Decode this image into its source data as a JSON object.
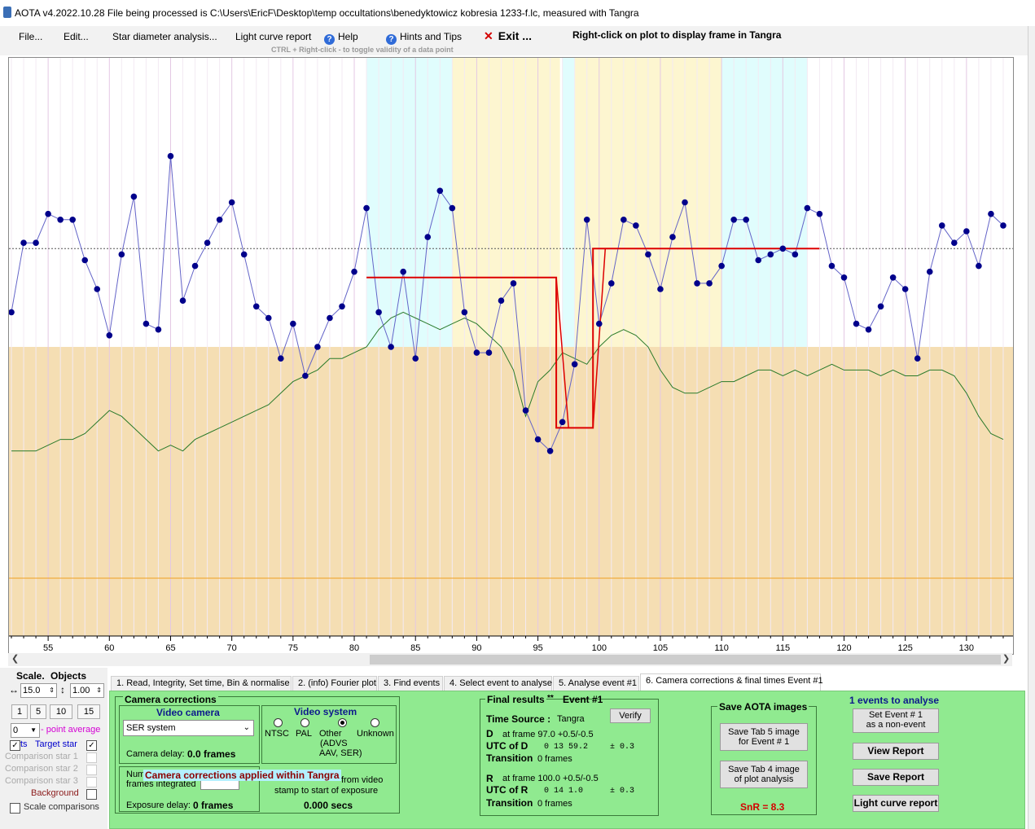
{
  "window": {
    "title": "AOTA v4.2022.10.28    File being processed is C:\\Users\\EricF\\Desktop\\temp occultations\\benedyktowicz kobresia 1233-f.lc, measured with Tangra"
  },
  "menu": {
    "file": "File...",
    "edit": "Edit...",
    "star_diameter": "Star diameter analysis...",
    "light_curve_report": "Light curve report",
    "help": "Help",
    "hints": "Hints and Tips",
    "exit": "Exit ...",
    "rightclick_hint": "Right-click on plot to display frame in Tangra",
    "ctrl_hint": "CTRL + Right-click  -  to toggle validity of a data point"
  },
  "colors": {
    "cyan_band": "#e0fdfd",
    "yellow_band": "#fdf6d0",
    "tan_region": "#f5deb3",
    "data_line": "#6464c8",
    "data_point": "#00008b",
    "model_line": "#dd0000",
    "comparison_line": "#2a7a2a",
    "orange_line": "#f0a020",
    "panel_green": "#90ea90"
  },
  "chart_data": {
    "type": "line",
    "x_ticks": [
      55,
      60,
      65,
      70,
      75,
      80,
      85,
      90,
      95,
      100,
      105,
      110,
      115,
      120,
      125,
      130
    ],
    "xlim": [
      51.8,
      133.8
    ],
    "ylim": [
      0,
      100
    ],
    "frame_range": [
      52,
      133
    ],
    "target_values": [
      56,
      68,
      68,
      73,
      72,
      72,
      65,
      60,
      52,
      66,
      76,
      54,
      53,
      83,
      58,
      64,
      68,
      72,
      75,
      66,
      57,
      55,
      48,
      54,
      45,
      50,
      55,
      57,
      63,
      74,
      56,
      50,
      63,
      48,
      69,
      77,
      74,
      56,
      49,
      49,
      58,
      61,
      39,
      34,
      32,
      37,
      47,
      72,
      54,
      61,
      72,
      71,
      66,
      60,
      69,
      75,
      61,
      61,
      64,
      72,
      72,
      65,
      66,
      67,
      66,
      74,
      73,
      64,
      62,
      54,
      53,
      57,
      62,
      60,
      48,
      63,
      71,
      68,
      70,
      64,
      73,
      71
    ],
    "comparison_values": [
      32,
      32,
      32,
      33,
      34,
      34,
      35,
      37,
      39,
      38,
      36,
      34,
      32,
      33,
      32,
      34,
      35,
      36,
      37,
      38,
      39,
      40,
      42,
      44,
      45,
      46,
      48,
      48,
      49,
      50,
      53,
      55,
      56,
      55,
      54,
      53,
      54,
      55,
      54,
      52,
      50,
      46,
      38,
      44,
      46,
      49,
      48,
      47,
      50,
      52,
      53,
      52,
      50,
      46,
      43,
      42,
      42,
      43,
      44,
      44,
      45,
      46,
      46,
      45,
      46,
      45,
      46,
      47,
      46,
      46,
      46,
      45,
      46,
      45,
      45,
      46,
      46,
      45,
      42,
      38,
      35,
      34
    ],
    "model_D": {
      "frame": 97.0,
      "upper": 62,
      "lower": 36,
      "x_start": 81
    },
    "model_R": {
      "frame": 100.0,
      "upper": 67,
      "lower": 36,
      "x_end": 118
    },
    "cyan_bands": [
      [
        81,
        88
      ],
      [
        97,
        98
      ],
      [
        110,
        117
      ]
    ],
    "yellow_bands": [
      [
        88,
        96.8
      ],
      [
        98,
        110
      ]
    ],
    "tan_region_top": 50,
    "baseline_dotted": 67,
    "orange_level": 10
  },
  "left_panel": {
    "scale_label": "Scale.",
    "objects_label": "Objects",
    "h_value": "15.0",
    "v_value": "1.00",
    "btn1": "1",
    "btn5": "5",
    "btn10": "10",
    "btn15": "15",
    "avg_value": "0",
    "point_average": "- point average",
    "pts": "ts",
    "target_star": "Target star",
    "comp1": "Comparison star 1",
    "comp2": "Comparison star 2",
    "comp3": "Comparison star 3",
    "background": "Background",
    "scale_comparisons": "Scale comparisons"
  },
  "tabs": [
    "1.  Read, Integrity, Set time, Bin & normalise",
    "2. (info)  Fourier plot",
    "3. Find events",
    "4. Select event to analyse",
    "5. Analyse event #1",
    "6. Camera corrections & final times Event #1"
  ],
  "camera": {
    "title": "Camera corrections",
    "video_camera": "Video camera",
    "camera_select": "SER system",
    "camera_delay_label": "Camera delay:",
    "camera_delay_value": "0.0 frames",
    "video_system": "Video system",
    "ntsc": "NTSC",
    "pal": "PAL",
    "other": "Other",
    "other_detail1": "(ADVS",
    "other_detail2": "AAV, SER)",
    "unknown": "Unknown",
    "applied_banner": "Camera corrections applied within Tangra",
    "num_frames_1": "Num",
    "num_frames_2": "frames integrated",
    "from_video_1": "from video",
    "from_video_2": "stamp to start of exposure",
    "offset_value": "0.000 secs",
    "exposure_delay_label": "Exposure delay:",
    "exposure_delay_value": "0 frames"
  },
  "results": {
    "title": "Final results",
    "stars": "**",
    "event": "Event  #1",
    "time_source_label": "Time Source :",
    "time_source_value": "Tangra",
    "verify": "Verify",
    "d_label": "D",
    "d_frame": "at frame 97.0   +0.5/-0.5",
    "utc_d_label": "UTC of D",
    "utc_d_value": "0 13 59.2",
    "utc_d_err": "± 0.3",
    "trans_label": "Transition",
    "d_transition": "0 frames",
    "r_label": "R",
    "r_frame": "at frame 100.0  +0.5/-0.5",
    "utc_r_label": "UTC of R",
    "utc_r_value": "0 14  1.0",
    "utc_r_err": "± 0.3",
    "r_transition": "0 frames"
  },
  "save": {
    "title": "Save AOTA images",
    "tab5_line1": "Save Tab 5 image",
    "tab5_line2": "for Event # 1",
    "tab4_line1": "Save Tab 4 image",
    "tab4_line2": "of plot analysis",
    "snr": "SnR = 8.3"
  },
  "events": {
    "count_label": "1  events to analyse",
    "set_event_line1": "Set Event # 1",
    "set_event_line2": "as a non-event",
    "view_report": "View Report",
    "save_report": "Save Report",
    "light_curve_report": "Light curve report"
  }
}
